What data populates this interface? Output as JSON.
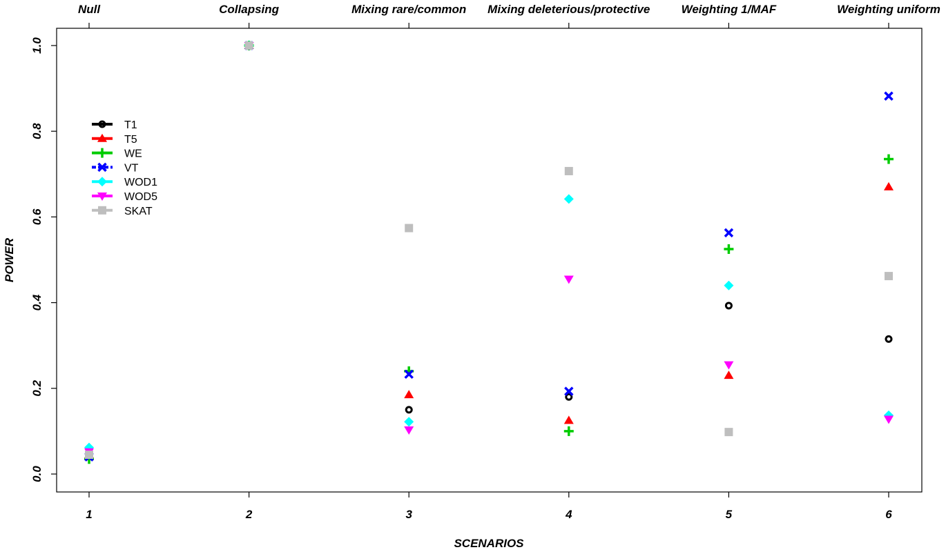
{
  "chart_data": {
    "type": "scatter",
    "xlabel": "SCENARIOS",
    "ylabel": "POWER",
    "x_ticks": [
      "1",
      "2",
      "3",
      "4",
      "5",
      "6"
    ],
    "y_ticks": [
      "0.0",
      "0.2",
      "0.4",
      "0.6",
      "0.8",
      "1.0"
    ],
    "top_labels": [
      "Null",
      "Collapsing",
      "Mixing rare/common",
      "Mixing deleterious/protective",
      "Weighting 1/MAF",
      "Weighting uniform"
    ],
    "xlim": [
      0.8,
      6.2
    ],
    "ylim": [
      -0.04,
      1.04
    ],
    "grid": false,
    "legend_position": "top-left",
    "series": [
      {
        "name": "T1",
        "color": "#000000",
        "marker": "circle",
        "x": [
          1,
          2,
          3,
          4,
          5,
          6
        ],
        "y": [
          0.04,
          1.0,
          0.15,
          0.18,
          0.393,
          0.315
        ]
      },
      {
        "name": "T5",
        "color": "#ff0000",
        "marker": "triangle-up",
        "x": [
          1,
          2,
          3,
          4,
          5,
          6
        ],
        "y": [
          0.045,
          1.0,
          0.185,
          0.125,
          0.23,
          0.67
        ]
      },
      {
        "name": "WE",
        "color": "#00cc00",
        "marker": "plus",
        "x": [
          1,
          2,
          3,
          4,
          5,
          6
        ],
        "y": [
          0.035,
          1.0,
          0.24,
          0.1,
          0.525,
          0.735
        ]
      },
      {
        "name": "VT",
        "color": "#0000ff",
        "marker": "cross",
        "x": [
          1,
          2,
          3,
          4,
          5,
          6
        ],
        "y": [
          0.04,
          1.0,
          0.233,
          0.193,
          0.563,
          0.882
        ]
      },
      {
        "name": "WOD1",
        "color": "#00ffff",
        "marker": "diamond",
        "x": [
          1,
          2,
          3,
          4,
          5,
          6
        ],
        "y": [
          0.062,
          1.0,
          0.122,
          0.642,
          0.44,
          0.137
        ]
      },
      {
        "name": "WOD5",
        "color": "#ff00ff",
        "marker": "triangle-down",
        "x": [
          1,
          2,
          3,
          4,
          5,
          6
        ],
        "y": [
          0.052,
          1.0,
          0.103,
          0.455,
          0.255,
          0.128
        ]
      },
      {
        "name": "SKAT",
        "color": "#bebebe",
        "marker": "square",
        "x": [
          1,
          2,
          3,
          4,
          5,
          6
        ],
        "y": [
          0.045,
          1.0,
          0.574,
          0.707,
          0.098,
          0.462
        ]
      }
    ]
  }
}
